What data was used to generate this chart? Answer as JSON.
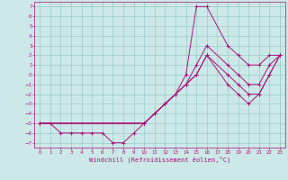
{
  "xlabel": "Windchill (Refroidissement éolien,°C)",
  "ylabel": "",
  "bg_color": "#cce8e8",
  "line_color": "#aa1177",
  "grid_color": "#99cccc",
  "xlim": [
    -0.5,
    23.5
  ],
  "ylim": [
    -7.5,
    7.5
  ],
  "xticks": [
    0,
    1,
    2,
    3,
    4,
    5,
    6,
    7,
    8,
    9,
    10,
    11,
    12,
    13,
    14,
    15,
    16,
    17,
    18,
    19,
    20,
    21,
    22,
    23
  ],
  "yticks": [
    -7,
    -6,
    -5,
    -4,
    -3,
    -2,
    -1,
    0,
    1,
    2,
    3,
    4,
    5,
    6,
    7
  ],
  "series": [
    {
      "x": [
        0,
        1,
        2,
        3,
        4,
        5,
        6,
        7,
        8,
        9,
        10,
        11,
        12,
        13,
        14,
        15,
        16,
        18,
        19,
        20,
        21,
        22,
        23
      ],
      "y": [
        -5,
        -5,
        -6,
        -6,
        -6,
        -6,
        -6,
        -7,
        -7,
        -6,
        -5,
        -4,
        -3,
        -2,
        0,
        7,
        7,
        3,
        2,
        1,
        1,
        2,
        2
      ]
    },
    {
      "x": [
        0,
        10,
        11,
        12,
        13,
        14,
        15,
        16,
        18,
        19,
        20,
        21,
        22,
        23
      ],
      "y": [
        -5,
        -5,
        -4,
        -3,
        -2,
        -1,
        1,
        3,
        1,
        0,
        -1,
        -1,
        1,
        2
      ]
    },
    {
      "x": [
        0,
        10,
        11,
        12,
        13,
        14,
        15,
        16,
        18,
        19,
        20,
        21,
        22,
        23
      ],
      "y": [
        -5,
        -5,
        -4,
        -3,
        -2,
        -1,
        0,
        2,
        0,
        -1,
        -2,
        -2,
        0,
        2
      ]
    },
    {
      "x": [
        0,
        10,
        14,
        15,
        16,
        18,
        19,
        20,
        21,
        22,
        23
      ],
      "y": [
        -5,
        -5,
        -1,
        0,
        2,
        -1,
        -2,
        -3,
        -2,
        0,
        2
      ]
    }
  ]
}
